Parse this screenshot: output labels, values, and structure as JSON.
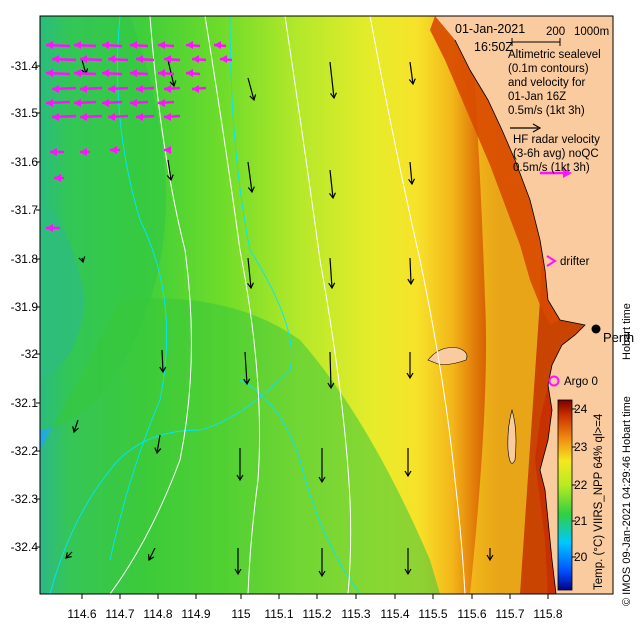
{
  "header": {
    "date": "01-Jan-2021",
    "time": "16:50Z",
    "scale_200": "200",
    "scale_1000": "1000m"
  },
  "legend": {
    "altimetric_lines": [
      "Altimetric sealevel",
      "(0.1m contours)",
      "and velocity for",
      "01-Jan 16Z",
      "0.5m/s (1kt 3h)"
    ],
    "hf_lines": [
      "HF radar velocity",
      "(3-6h avg) noQC",
      "0.5m/s (1kt 3h)"
    ],
    "drifter": "drifter",
    "argo": "Argo 0",
    "city": "Perth",
    "timezone": "Hobart time"
  },
  "axes": {
    "y_labels": [
      "-31.4",
      "-31.5",
      "-31.6",
      "-31.7",
      "-31.8",
      "-31.9",
      "-32",
      "-32.1",
      "-32.2",
      "-32.3",
      "-32.4"
    ],
    "x_labels": [
      "114.6",
      "114.7",
      "114.8",
      "114.9",
      "115",
      "115.1",
      "115.2",
      "115.3",
      "115.4",
      "115.5",
      "115.6",
      "115.7",
      "115.8"
    ],
    "lon_range": [
      114.55,
      115.88
    ],
    "lat_range": [
      -32.5,
      -31.33
    ]
  },
  "colorbar": {
    "ticks": [
      "24",
      "23",
      "22",
      "21",
      "20"
    ],
    "label": "Temp. (°C) VIIRS_NPP 64% ql>=4",
    "range": [
      19.5,
      24.5
    ]
  },
  "credit": "© IMOS 09-Jan-2021 04:29:46 Hobart time",
  "colors": {
    "land": "#fbcba0",
    "warm": "#d84a00",
    "hf_arrow": "#ff10ff",
    "contour": "#ffffff",
    "bathy": "#00e6ff"
  }
}
